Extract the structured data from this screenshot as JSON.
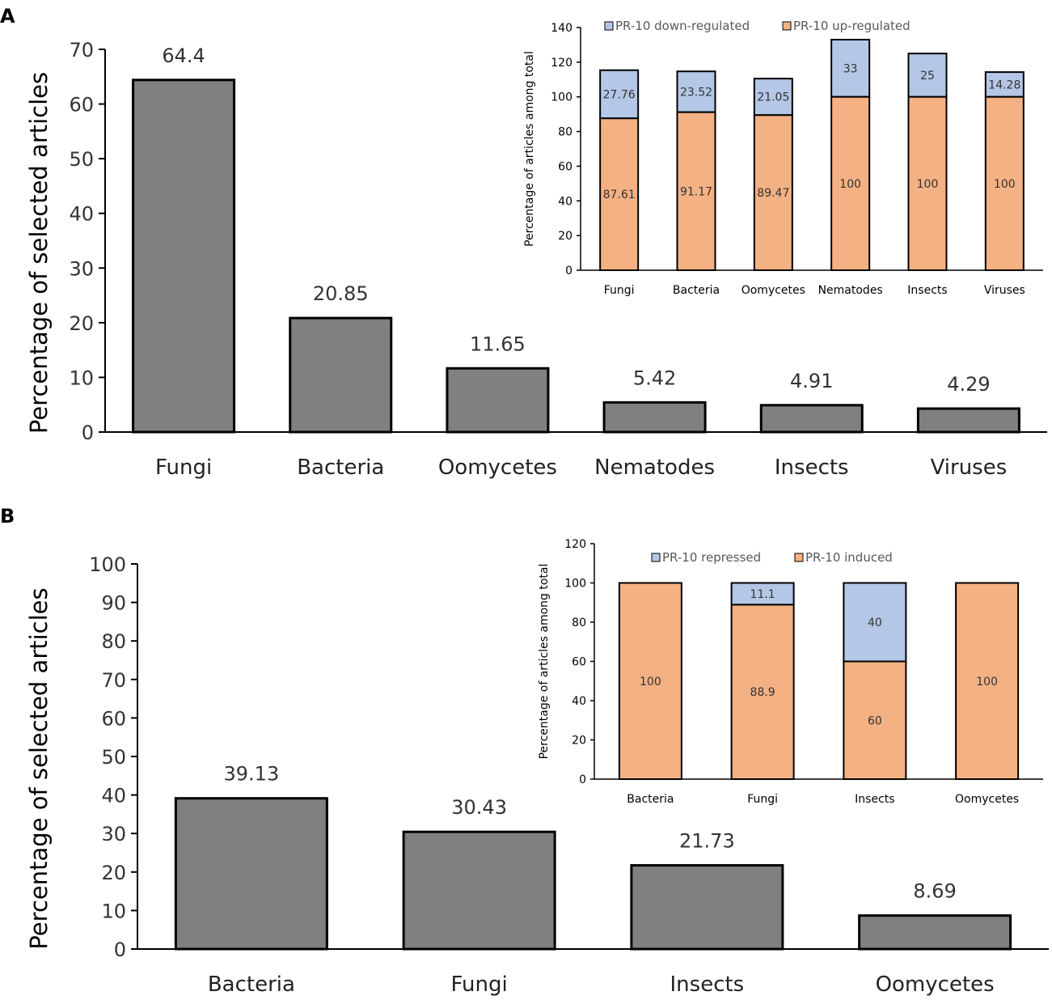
{
  "figure": {
    "panel_a_label": "A",
    "panel_b_label": "B"
  },
  "chart_data": [
    {
      "id": "A_main",
      "type": "bar",
      "categories": [
        "Fungi",
        "Bacteria",
        "Oomycetes",
        "Nematodes",
        "Insects",
        "Viruses"
      ],
      "values": [
        64.4,
        20.85,
        11.65,
        5.42,
        4.91,
        4.29
      ],
      "labels": [
        "64.4",
        "20.85",
        "11.65",
        "5.42",
        "4.91",
        "4.29"
      ],
      "ylabel": "Percentage of selected articles",
      "xlabel": "",
      "ylim": [
        0,
        70
      ],
      "yticks": [
        0,
        10,
        20,
        30,
        40,
        50,
        60,
        70
      ],
      "bar_color": "#808080"
    },
    {
      "id": "A_inset",
      "type": "bar",
      "stacked": true,
      "categories": [
        "Fungi",
        "Bacteria",
        "Oomycetes",
        "Nematodes",
        "Insects",
        "Viruses"
      ],
      "series": [
        {
          "name": "PR-10 up-regulated",
          "values": [
            87.61,
            91.17,
            89.47,
            100,
            100,
            100
          ],
          "labels": [
            "87.61",
            "91.17",
            "89.47",
            "100",
            "100",
            "100"
          ],
          "color": "#F4B183"
        },
        {
          "name": "PR-10 down-regulated",
          "values": [
            27.76,
            23.52,
            21.05,
            33,
            25,
            14.28
          ],
          "labels": [
            "27.76",
            "23.52",
            "21.05",
            "33",
            "25",
            "14.28"
          ],
          "color": "#B4C7E7"
        }
      ],
      "legend": [
        "PR-10 down-regulated",
        "PR-10 up-regulated"
      ],
      "ylabel": "Percentage of articles among total",
      "ylim": [
        0,
        140
      ],
      "yticks": [
        0,
        20,
        40,
        60,
        80,
        100,
        120,
        140
      ]
    },
    {
      "id": "B_main",
      "type": "bar",
      "categories": [
        "Bacteria",
        "Fungi",
        "Insects",
        "Oomycetes"
      ],
      "values": [
        39.13,
        30.43,
        21.73,
        8.69
      ],
      "labels": [
        "39.13",
        "30.43",
        "21.73",
        "8.69"
      ],
      "ylabel": "Percentage of selected articles",
      "xlabel": "",
      "ylim": [
        0,
        100
      ],
      "yticks": [
        0,
        10,
        20,
        30,
        40,
        50,
        60,
        70,
        80,
        90,
        100
      ],
      "bar_color": "#808080"
    },
    {
      "id": "B_inset",
      "type": "bar",
      "stacked": true,
      "categories": [
        "Bacteria",
        "Fungi",
        "Insects",
        "Oomycetes"
      ],
      "series": [
        {
          "name": "PR-10 induced",
          "values": [
            100,
            88.9,
            60,
            100
          ],
          "labels": [
            "100",
            "88.9",
            "60",
            "100"
          ],
          "color": "#F4B183"
        },
        {
          "name": "PR-10 repressed",
          "values": [
            0,
            11.1,
            40,
            0
          ],
          "labels": [
            "",
            "11.1",
            "40",
            ""
          ],
          "color": "#B4C7E7"
        }
      ],
      "legend": [
        "PR-10 repressed",
        "PR-10 induced"
      ],
      "ylabel": "Percentage of articles among total",
      "ylim": [
        0,
        120
      ],
      "yticks": [
        0,
        20,
        40,
        60,
        80,
        100,
        120
      ]
    }
  ]
}
